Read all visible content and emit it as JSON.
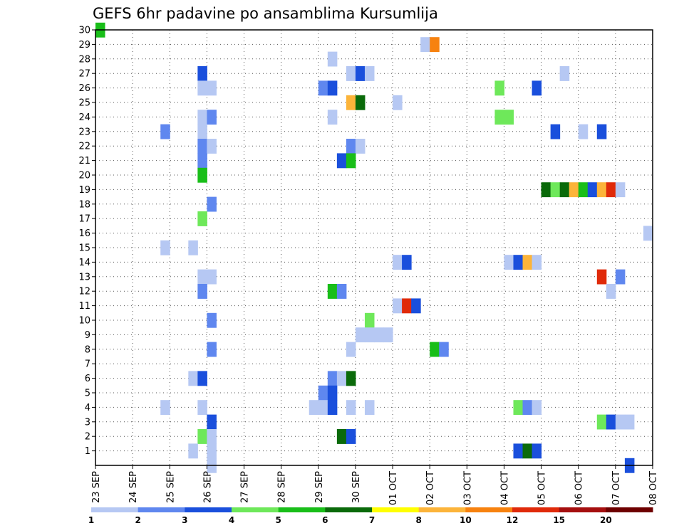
{
  "chart_data": {
    "type": "heatmap",
    "title": "GEFS 6hr padavine po ansamblima Kursumlija",
    "xlabel": "",
    "ylabel": "",
    "x_ticks": [
      "23 SEP",
      "24 SEP",
      "25 SEP",
      "26 SEP",
      "27 SEP",
      "28 SEP",
      "29 SEP",
      "30 SEP",
      "01 OCT",
      "02 OCT",
      "03 OCT",
      "04 OCT",
      "05 OCT",
      "06 OCT",
      "07 OCT",
      "08 OCT"
    ],
    "xlim": [
      "23 SEP",
      "08 OCT"
    ],
    "x_step_hours": 6,
    "y_ticks": [
      1,
      2,
      3,
      4,
      5,
      6,
      7,
      8,
      9,
      10,
      11,
      12,
      13,
      14,
      15,
      16,
      17,
      18,
      19,
      20,
      21,
      22,
      23,
      24,
      25,
      26,
      27,
      28,
      29,
      30
    ],
    "ylim": [
      0,
      30
    ],
    "grid": true,
    "colorbar": {
      "placement": "bottom",
      "tick_labels": [
        "1",
        "2",
        "3",
        "4",
        "5",
        "6",
        "7",
        "8",
        "10",
        "12",
        "15",
        "20"
      ],
      "colors": [
        "#b6c8f3",
        "#5f87ef",
        "#1a4fdc",
        "#6ee85a",
        "#19be19",
        "#0a6a0a",
        "#ffff00",
        "#fcb43a",
        "#f7820f",
        "#e02a0a",
        "#a50f0f",
        "#6e0000"
      ]
    },
    "levels_note": "value = colour class index 1..12 matching colorbar bins",
    "cells": [
      {
        "member": 30,
        "step": 0,
        "value": 5
      },
      {
        "member": 29,
        "step": 35,
        "value": 1
      },
      {
        "member": 29,
        "step": 36,
        "value": 9
      },
      {
        "member": 28,
        "step": 25,
        "value": 1
      },
      {
        "member": 27,
        "step": 11,
        "value": 3
      },
      {
        "member": 27,
        "step": 27,
        "value": 1
      },
      {
        "member": 27,
        "step": 28,
        "value": 3
      },
      {
        "member": 27,
        "step": 29,
        "value": 1
      },
      {
        "member": 27,
        "step": 50,
        "value": 1
      },
      {
        "member": 26,
        "step": 11,
        "value": 1
      },
      {
        "member": 26,
        "step": 12,
        "value": 1
      },
      {
        "member": 26,
        "step": 24,
        "value": 2
      },
      {
        "member": 26,
        "step": 25,
        "value": 3
      },
      {
        "member": 26,
        "step": 43,
        "value": 4
      },
      {
        "member": 26,
        "step": 47,
        "value": 3
      },
      {
        "member": 25,
        "step": 27,
        "value": 8
      },
      {
        "member": 25,
        "step": 28,
        "value": 6
      },
      {
        "member": 25,
        "step": 32,
        "value": 1
      },
      {
        "member": 24,
        "step": 11,
        "value": 1
      },
      {
        "member": 24,
        "step": 12,
        "value": 2
      },
      {
        "member": 24,
        "step": 25,
        "value": 1
      },
      {
        "member": 24,
        "step": 43,
        "value": 4
      },
      {
        "member": 24,
        "step": 44,
        "value": 4
      },
      {
        "member": 23,
        "step": 7,
        "value": 2
      },
      {
        "member": 23,
        "step": 11,
        "value": 1
      },
      {
        "member": 23,
        "step": 49,
        "value": 3
      },
      {
        "member": 23,
        "step": 52,
        "value": 1
      },
      {
        "member": 23,
        "step": 54,
        "value": 3
      },
      {
        "member": 22,
        "step": 11,
        "value": 2
      },
      {
        "member": 22,
        "step": 12,
        "value": 1
      },
      {
        "member": 22,
        "step": 27,
        "value": 2
      },
      {
        "member": 22,
        "step": 28,
        "value": 1
      },
      {
        "member": 21,
        "step": 11,
        "value": 2
      },
      {
        "member": 21,
        "step": 26,
        "value": 3
      },
      {
        "member": 21,
        "step": 27,
        "value": 5
      },
      {
        "member": 20,
        "step": 11,
        "value": 5
      },
      {
        "member": 19,
        "step": 48,
        "value": 6
      },
      {
        "member": 19,
        "step": 49,
        "value": 4
      },
      {
        "member": 19,
        "step": 50,
        "value": 6
      },
      {
        "member": 19,
        "step": 51,
        "value": 8
      },
      {
        "member": 19,
        "step": 52,
        "value": 5
      },
      {
        "member": 19,
        "step": 53,
        "value": 3
      },
      {
        "member": 19,
        "step": 54,
        "value": 8
      },
      {
        "member": 19,
        "step": 55,
        "value": 10
      },
      {
        "member": 19,
        "step": 56,
        "value": 1
      },
      {
        "member": 18,
        "step": 12,
        "value": 2
      },
      {
        "member": 17,
        "step": 11,
        "value": 4
      },
      {
        "member": 16,
        "step": 59,
        "value": 1
      },
      {
        "member": 15,
        "step": 7,
        "value": 1
      },
      {
        "member": 15,
        "step": 10,
        "value": 1
      },
      {
        "member": 14,
        "step": 32,
        "value": 1
      },
      {
        "member": 14,
        "step": 33,
        "value": 3
      },
      {
        "member": 14,
        "step": 44,
        "value": 1
      },
      {
        "member": 14,
        "step": 45,
        "value": 3
      },
      {
        "member": 14,
        "step": 46,
        "value": 8
      },
      {
        "member": 14,
        "step": 47,
        "value": 1
      },
      {
        "member": 13,
        "step": 11,
        "value": 1
      },
      {
        "member": 13,
        "step": 12,
        "value": 1
      },
      {
        "member": 13,
        "step": 54,
        "value": 10
      },
      {
        "member": 13,
        "step": 56,
        "value": 2
      },
      {
        "member": 12,
        "step": 11,
        "value": 2
      },
      {
        "member": 12,
        "step": 25,
        "value": 5
      },
      {
        "member": 12,
        "step": 26,
        "value": 2
      },
      {
        "member": 12,
        "step": 55,
        "value": 1
      },
      {
        "member": 11,
        "step": 32,
        "value": 1
      },
      {
        "member": 11,
        "step": 33,
        "value": 10
      },
      {
        "member": 11,
        "step": 34,
        "value": 3
      },
      {
        "member": 10,
        "step": 12,
        "value": 2
      },
      {
        "member": 10,
        "step": 29,
        "value": 4
      },
      {
        "member": 9,
        "step": 28,
        "value": 1
      },
      {
        "member": 9,
        "step": 29,
        "value": 1
      },
      {
        "member": 9,
        "step": 30,
        "value": 1
      },
      {
        "member": 9,
        "step": 31,
        "value": 1
      },
      {
        "member": 8,
        "step": 12,
        "value": 2
      },
      {
        "member": 8,
        "step": 27,
        "value": 1
      },
      {
        "member": 8,
        "step": 36,
        "value": 5
      },
      {
        "member": 8,
        "step": 37,
        "value": 2
      },
      {
        "member": 6,
        "step": 10,
        "value": 1
      },
      {
        "member": 6,
        "step": 11,
        "value": 3
      },
      {
        "member": 6,
        "step": 25,
        "value": 2
      },
      {
        "member": 6,
        "step": 26,
        "value": 1
      },
      {
        "member": 6,
        "step": 27,
        "value": 6
      },
      {
        "member": 5,
        "step": 24,
        "value": 2
      },
      {
        "member": 5,
        "step": 25,
        "value": 3
      },
      {
        "member": 4,
        "step": 7,
        "value": 1
      },
      {
        "member": 4,
        "step": 11,
        "value": 1
      },
      {
        "member": 4,
        "step": 23,
        "value": 1
      },
      {
        "member": 4,
        "step": 24,
        "value": 1
      },
      {
        "member": 4,
        "step": 25,
        "value": 3
      },
      {
        "member": 4,
        "step": 27,
        "value": 1
      },
      {
        "member": 4,
        "step": 29,
        "value": 1
      },
      {
        "member": 4,
        "step": 45,
        "value": 4
      },
      {
        "member": 4,
        "step": 46,
        "value": 2
      },
      {
        "member": 4,
        "step": 47,
        "value": 1
      },
      {
        "member": 3,
        "step": 12,
        "value": 3
      },
      {
        "member": 3,
        "step": 54,
        "value": 4
      },
      {
        "member": 3,
        "step": 55,
        "value": 3
      },
      {
        "member": 3,
        "step": 56,
        "value": 1
      },
      {
        "member": 3,
        "step": 57,
        "value": 1
      },
      {
        "member": 2,
        "step": 11,
        "value": 4
      },
      {
        "member": 2,
        "step": 12,
        "value": 1
      },
      {
        "member": 2,
        "step": 26,
        "value": 6
      },
      {
        "member": 2,
        "step": 27,
        "value": 3
      },
      {
        "member": 1,
        "step": 10,
        "value": 1
      },
      {
        "member": 1,
        "step": 12,
        "value": 1
      },
      {
        "member": 1,
        "step": 45,
        "value": 3
      },
      {
        "member": 1,
        "step": 46,
        "value": 6
      },
      {
        "member": 1,
        "step": 47,
        "value": 3
      },
      {
        "member": 0,
        "step": 12,
        "value": 1
      },
      {
        "member": 0,
        "step": 57,
        "value": 3
      }
    ]
  }
}
